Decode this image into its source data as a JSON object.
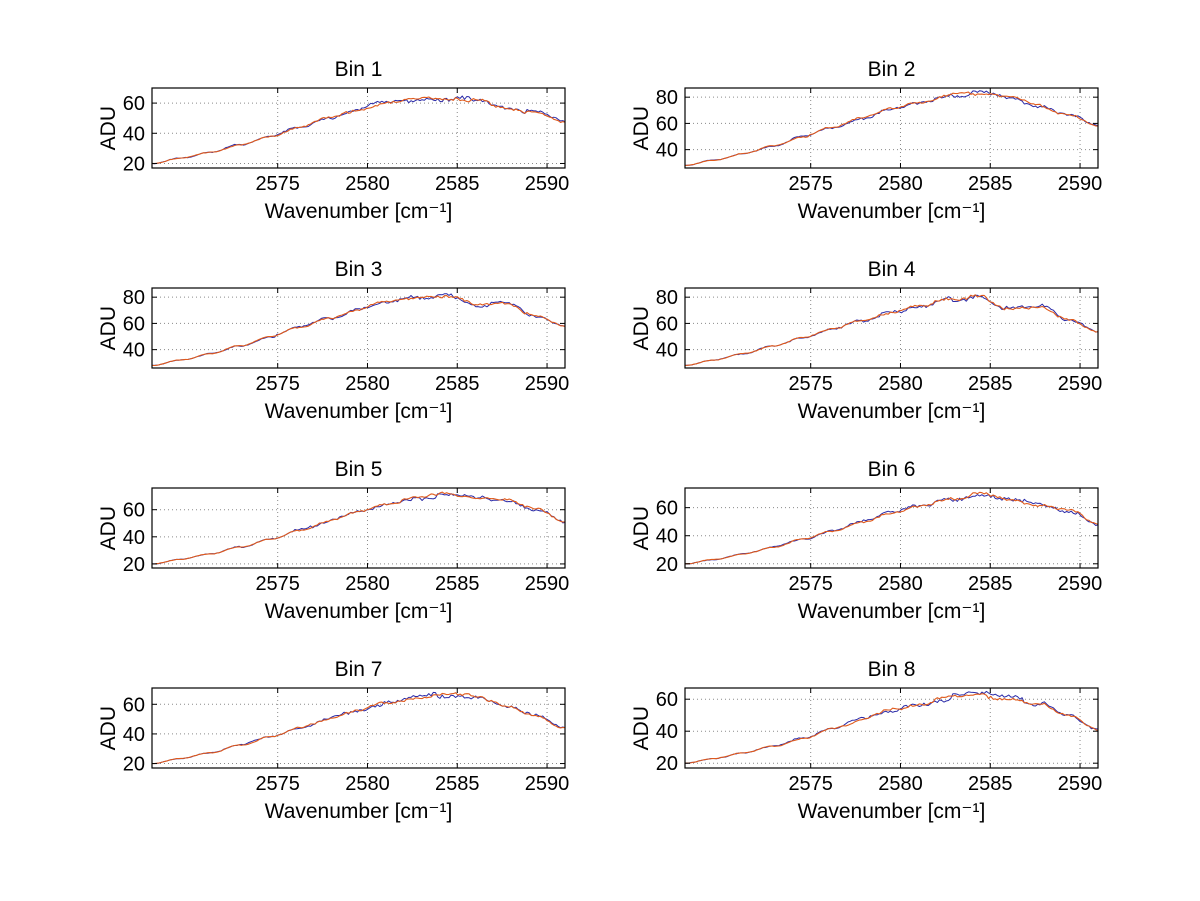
{
  "figure": {
    "background": "#ffffff",
    "ylabel": "ADU",
    "xlabel": "Wavenumber [cm⁻¹]",
    "grid_style": "dotted",
    "grid_color": "#8a8a8a",
    "axis_color": "#000000",
    "series_colors": {
      "data_line": "#2a2aa8",
      "overlay_line": "#e05a1b"
    }
  },
  "chart_data": [
    {
      "type": "line",
      "title": "Bin 1",
      "xlabel": "Wavenumber [cm⁻¹]",
      "ylabel": "ADU",
      "xlim": [
        2568,
        2591
      ],
      "ylim": [
        17,
        70
      ],
      "xticks": [
        2575,
        2580,
        2585,
        2590
      ],
      "yticks": [
        20,
        40,
        60
      ],
      "x": [
        2568,
        2569.6,
        2571.3,
        2572.9,
        2574.6,
        2576.2,
        2577.9,
        2579.5,
        2581.1,
        2582.8,
        2584.4,
        2586.1,
        2587.7,
        2589.4,
        2591
      ],
      "y": [
        20,
        23.5,
        27.5,
        32.5,
        38,
        44,
        50,
        56,
        60.5,
        63,
        63.5,
        61.5,
        57,
        53.5,
        47.5
      ],
      "noise_amp": 1.3,
      "seed": 11
    },
    {
      "type": "line",
      "title": "Bin 2",
      "xlabel": "Wavenumber [cm⁻¹]",
      "ylabel": "ADU",
      "xlim": [
        2568,
        2591
      ],
      "ylim": [
        26,
        87
      ],
      "xticks": [
        2575,
        2580,
        2585,
        2590
      ],
      "yticks": [
        40,
        60,
        80
      ],
      "x": [
        2568,
        2569.6,
        2571.3,
        2572.9,
        2574.6,
        2576.2,
        2577.9,
        2579.5,
        2581.1,
        2582.8,
        2584.4,
        2586.1,
        2587.7,
        2589.4,
        2591
      ],
      "y": [
        28,
        32,
        37,
        43,
        50,
        57,
        64,
        71,
        77,
        81.5,
        83,
        80,
        73.5,
        66,
        58
      ],
      "noise_amp": 1.3,
      "seed": 22
    },
    {
      "type": "line",
      "title": "Bin 3",
      "xlabel": "Wavenumber [cm⁻¹]",
      "ylabel": "ADU",
      "xlim": [
        2568,
        2591
      ],
      "ylim": [
        26,
        87
      ],
      "xticks": [
        2575,
        2580,
        2585,
        2590
      ],
      "yticks": [
        40,
        60,
        80
      ],
      "x": [
        2568,
        2569.6,
        2571.3,
        2572.9,
        2574.6,
        2576.2,
        2577.9,
        2579.5,
        2581.1,
        2582.8,
        2584.4,
        2586.1,
        2587.7,
        2589.4,
        2591
      ],
      "y": [
        28,
        32,
        37,
        43,
        50,
        57,
        64,
        70.5,
        76.5,
        80.5,
        81.5,
        74,
        75.5,
        65,
        57.5
      ],
      "noise_amp": 1.3,
      "seed": 33
    },
    {
      "type": "line",
      "title": "Bin 4",
      "xlabel": "Wavenumber [cm⁻¹]",
      "ylabel": "ADU",
      "xlim": [
        2568,
        2591
      ],
      "ylim": [
        26,
        87
      ],
      "xticks": [
        2575,
        2580,
        2585,
        2590
      ],
      "yticks": [
        40,
        60,
        80
      ],
      "x": [
        2568,
        2569.6,
        2571.3,
        2572.9,
        2574.6,
        2576.2,
        2577.9,
        2579.5,
        2581.1,
        2582.8,
        2584.4,
        2586.1,
        2587.7,
        2589.4,
        2591
      ],
      "y": [
        28,
        32,
        37,
        43,
        49.5,
        56,
        62.5,
        68.5,
        74,
        78,
        80,
        71,
        73,
        62.5,
        54
      ],
      "noise_amp": 1.3,
      "seed": 44
    },
    {
      "type": "line",
      "title": "Bin 5",
      "xlabel": "Wavenumber [cm⁻¹]",
      "ylabel": "ADU",
      "xlim": [
        2568,
        2591
      ],
      "ylim": [
        17,
        76
      ],
      "xticks": [
        2575,
        2580,
        2585,
        2590
      ],
      "yticks": [
        20,
        40,
        60
      ],
      "x": [
        2568,
        2569.6,
        2571.3,
        2572.9,
        2574.6,
        2576.2,
        2577.9,
        2579.5,
        2581.1,
        2582.8,
        2584.4,
        2586.1,
        2587.7,
        2589.4,
        2591
      ],
      "y": [
        20,
        23.5,
        27.5,
        32.5,
        38.5,
        45,
        51.5,
        58,
        64,
        69,
        71.5,
        68.5,
        67.5,
        60.5,
        51
      ],
      "noise_amp": 1.3,
      "seed": 55
    },
    {
      "type": "line",
      "title": "Bin 6",
      "xlabel": "Wavenumber [cm⁻¹]",
      "ylabel": "ADU",
      "xlim": [
        2568,
        2591
      ],
      "ylim": [
        17,
        74
      ],
      "xticks": [
        2575,
        2580,
        2585,
        2590
      ],
      "yticks": [
        20,
        40,
        60
      ],
      "x": [
        2568,
        2569.6,
        2571.3,
        2572.9,
        2574.6,
        2576.2,
        2577.9,
        2579.5,
        2581.1,
        2582.8,
        2584.4,
        2586.1,
        2587.7,
        2589.4,
        2591
      ],
      "y": [
        20,
        23,
        27,
        32,
        37.5,
        43.5,
        50,
        56,
        62,
        66.5,
        69.5,
        66,
        62,
        58,
        48
      ],
      "noise_amp": 1.3,
      "seed": 66
    },
    {
      "type": "line",
      "title": "Bin 7",
      "xlabel": "Wavenumber [cm⁻¹]",
      "ylabel": "ADU",
      "xlim": [
        2568,
        2591
      ],
      "ylim": [
        17,
        71
      ],
      "xticks": [
        2575,
        2580,
        2585,
        2590
      ],
      "yticks": [
        20,
        40,
        60
      ],
      "x": [
        2568,
        2569.6,
        2571.3,
        2572.9,
        2574.6,
        2576.2,
        2577.9,
        2579.5,
        2581.1,
        2582.8,
        2584.4,
        2586.1,
        2587.7,
        2589.4,
        2591
      ],
      "y": [
        20,
        23.5,
        27.5,
        32.5,
        38,
        44,
        50.5,
        56.5,
        61,
        64.5,
        66.5,
        65.5,
        58.5,
        52,
        44
      ],
      "noise_amp": 1.3,
      "seed": 77
    },
    {
      "type": "line",
      "title": "Bin 8",
      "xlabel": "Wavenumber [cm⁻¹]",
      "ylabel": "ADU",
      "xlim": [
        2568,
        2591
      ],
      "ylim": [
        17,
        67
      ],
      "xticks": [
        2575,
        2580,
        2585,
        2590
      ],
      "yticks": [
        20,
        40,
        60
      ],
      "x": [
        2568,
        2569.6,
        2571.3,
        2572.9,
        2574.6,
        2576.2,
        2577.9,
        2579.5,
        2581.1,
        2582.8,
        2584.4,
        2586.1,
        2587.7,
        2589.4,
        2591
      ],
      "y": [
        20,
        23,
        26.5,
        30.5,
        35.5,
        41.5,
        47.5,
        53,
        57.5,
        61,
        62.5,
        60.5,
        57,
        49.5,
        41
      ],
      "noise_amp": 1.3,
      "seed": 88
    }
  ]
}
